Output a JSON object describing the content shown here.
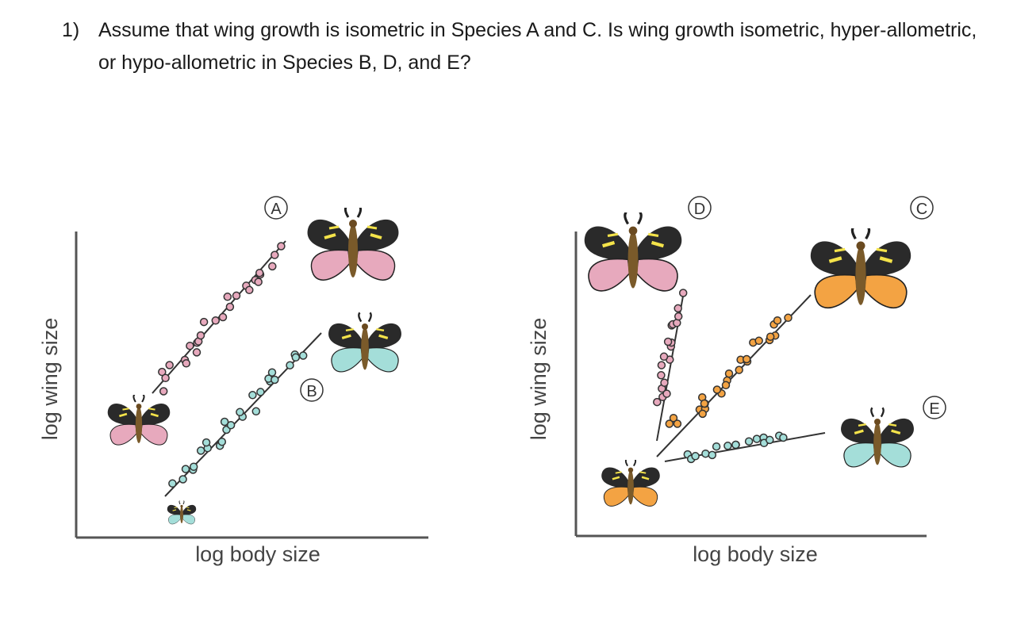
{
  "question": {
    "number": "1)",
    "text": "Assume that wing growth is isometric in Species A and C. Is wing growth isometric, hyper-allometric, or hypo-allometric in Species B, D, and E?"
  },
  "left_panel": {
    "xlabel": "log body size",
    "ylabel": "log wing size",
    "species": [
      {
        "label": "A",
        "wing_color": "#e7a9bd",
        "point_color": "#e7a9bd"
      },
      {
        "label": "B",
        "wing_color": "#a4ded9",
        "point_color": "#a4ded9"
      }
    ]
  },
  "right_panel": {
    "xlabel": "log body size",
    "ylabel": "log wing size",
    "species": [
      {
        "label": "D",
        "wing_color": "#e7a9bd",
        "point_color": "#e7a9bd"
      },
      {
        "label": "C",
        "wing_color": "#f3a343",
        "point_color": "#f3a343"
      },
      {
        "label": "E",
        "wing_color": "#a4ded9",
        "point_color": "#a4ded9"
      }
    ]
  },
  "icons": [
    "butterfly-icon"
  ]
}
